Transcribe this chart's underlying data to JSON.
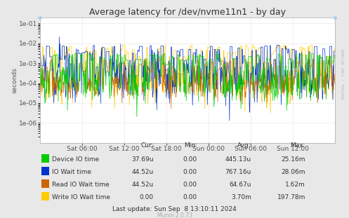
{
  "title": "Average latency for /dev/nvme11n1 - by day",
  "ylabel": "seconds",
  "background_color": "#e8e8e8",
  "plot_bg_color": "#ffffff",
  "x_ticks": [
    "Sat 06:00",
    "Sat 12:00",
    "Sat 18:00",
    "Sun 00:00",
    "Sun 06:00",
    "Sun 12:00"
  ],
  "ylim_min": 1e-07,
  "ylim_max": 0.2,
  "legend": [
    {
      "label": "Device IO time",
      "color": "#00cc00"
    },
    {
      "label": "IO Wait time",
      "color": "#0033cc"
    },
    {
      "label": "Read IO Wait time",
      "color": "#cc6600"
    },
    {
      "label": "Write IO Wait time",
      "color": "#ffcc00"
    }
  ],
  "table_headers": [
    "Cur:",
    "Min:",
    "Avg:",
    "Max:"
  ],
  "table_rows": [
    [
      "Device IO time",
      "37.69u",
      "0.00",
      "445.13u",
      "25.16m"
    ],
    [
      "IO Wait time",
      "44.52u",
      "0.00",
      "767.16u",
      "28.06m"
    ],
    [
      "Read IO Wait time",
      "44.52u",
      "0.00",
      "64.67u",
      "1.62m"
    ],
    [
      "Write IO Wait time",
      "0.00",
      "0.00",
      "3.70m",
      "197.78m"
    ]
  ],
  "last_update": "Last update: Sun Sep  8 13:10:11 2024",
  "munin_version": "Munin 2.0.73",
  "rrdtool_label": "RRDTOOL / TOBI OETIKER",
  "title_fontsize": 9,
  "axis_fontsize": 6.5,
  "table_fontsize": 6.5
}
